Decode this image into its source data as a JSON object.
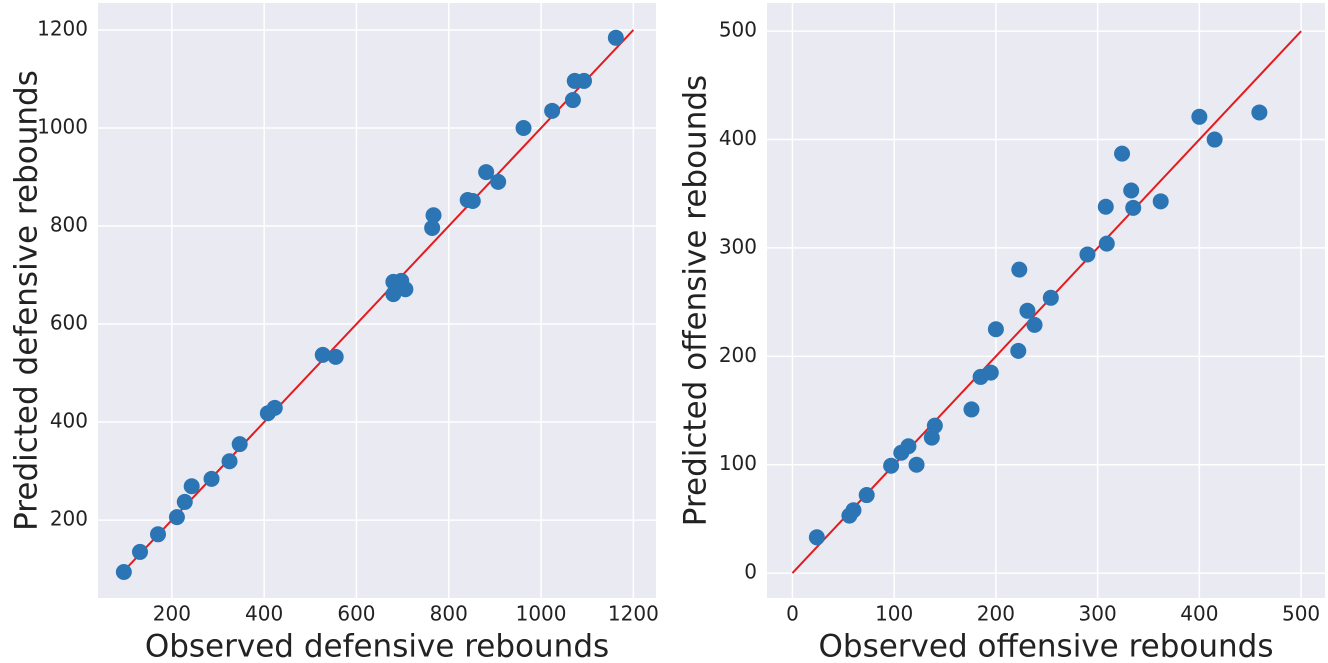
{
  "chart_data": [
    {
      "type": "scatter",
      "xlabel": "Observed defensive rebounds",
      "ylabel": "Predicted defensive rebounds",
      "x": [
        96,
        131,
        170,
        211,
        228,
        243,
        286,
        325,
        347,
        408,
        423,
        527,
        555,
        680,
        680,
        697,
        706,
        764,
        767,
        841,
        852,
        881,
        907,
        962,
        1024,
        1069,
        1073,
        1093,
        1162
      ],
      "values": [
        94,
        135,
        171,
        206,
        237,
        269,
        284,
        320,
        355,
        418,
        429,
        537,
        533,
        686,
        661,
        688,
        671,
        796,
        822,
        853,
        851,
        910,
        890,
        1000,
        1035,
        1057,
        1096,
        1096,
        1184
      ],
      "color": "#2b75b4",
      "reference_line": {
        "x": [
          85,
          1200
        ],
        "y": [
          85,
          1200
        ],
        "color": "#e41a1c"
      },
      "xlim": [
        40,
        1249
      ],
      "ylim": [
        41,
        1255
      ],
      "xticks": [
        200,
        400,
        600,
        800,
        1000,
        1200
      ],
      "yticks": [
        200,
        400,
        600,
        800,
        1000,
        1200
      ],
      "grid": true
    },
    {
      "type": "scatter",
      "xlabel": "Observed offensive rebounds",
      "ylabel": "Predicted offensive rebounds",
      "x": [
        24,
        56,
        60,
        73,
        97,
        107,
        114,
        122,
        137,
        140,
        176,
        185,
        195,
        200,
        222,
        223,
        231,
        238,
        254,
        290,
        308,
        309,
        324,
        333,
        335,
        362,
        400,
        415,
        459
      ],
      "values": [
        33,
        53,
        58,
        72,
        99,
        111,
        117,
        100,
        125,
        136,
        151,
        181,
        185,
        225,
        205,
        280,
        242,
        229,
        254,
        294,
        338,
        304,
        387,
        353,
        337,
        343,
        421,
        400,
        425
      ],
      "color": "#2b75b4",
      "reference_line": {
        "x": [
          0,
          500
        ],
        "y": [
          0,
          500
        ],
        "color": "#e41a1c"
      },
      "xlim": [
        -25,
        523.5
      ],
      "ylim": [
        -23,
        526
      ],
      "xticks": [
        0,
        100,
        200,
        300,
        400,
        500
      ],
      "yticks": [
        0,
        100,
        200,
        300,
        400,
        500
      ],
      "grid": true
    }
  ]
}
